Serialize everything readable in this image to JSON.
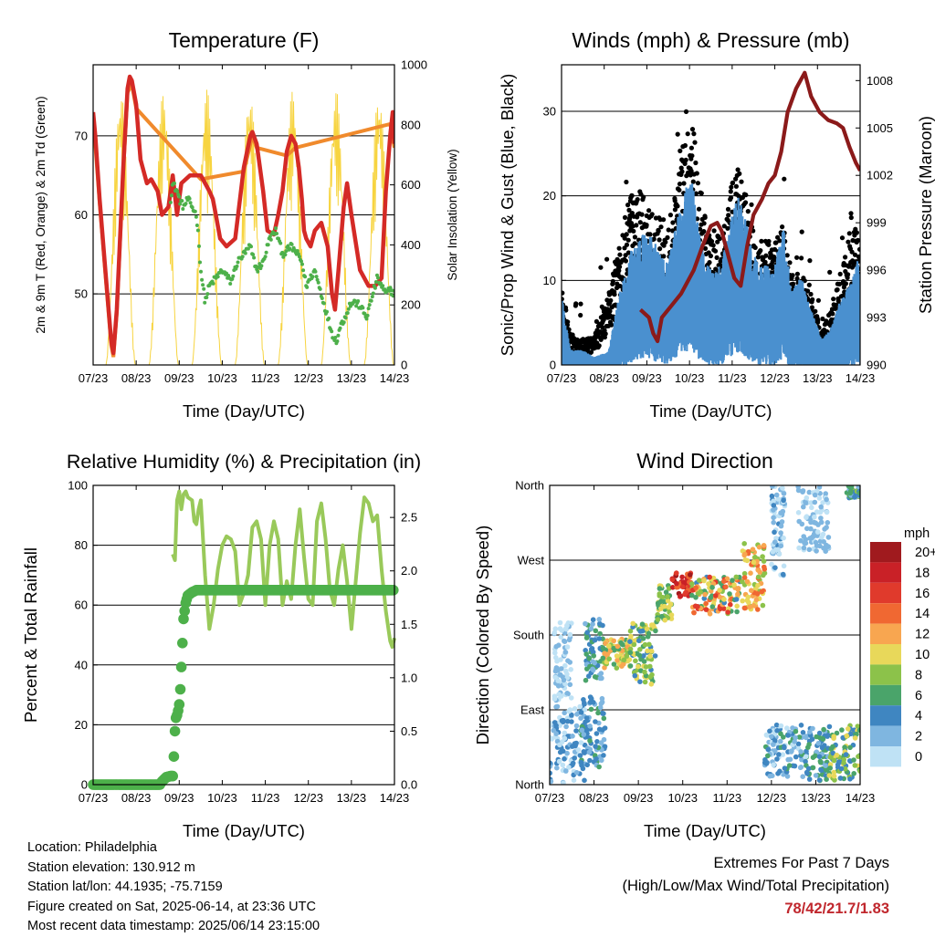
{
  "colors": {
    "temp": "#d42a26",
    "temp9": "#f08a2c",
    "dew": "#4db04a",
    "solar": "#f7d440",
    "gust": "#000000",
    "wind": "#4a90cf",
    "pressure": "#8b1a1a",
    "rh": "#99c95a",
    "precip": "#4db04a",
    "extremes": "#c0272d"
  },
  "chart_data": [
    {
      "id": "temperature",
      "type": "line",
      "title": "Temperature (F)",
      "xlabel": "Time (Day/UTC)",
      "ylabel": "2m & 9m T (Red, Orange) & 2m Td (Green)",
      "y2label": "Solar Insolation (Yellow)",
      "x_ticks": [
        "07/23",
        "08/23",
        "09/23",
        "10/23",
        "11/23",
        "12/23",
        "13/23",
        "14/23"
      ],
      "xlim": [
        0,
        7
      ],
      "ylim": [
        41,
        79
      ],
      "y_ticks": [
        50,
        60,
        70
      ],
      "y2lim": [
        0,
        1000
      ],
      "y2_ticks": [
        0,
        200,
        400,
        600,
        800,
        1000
      ],
      "grid": "horizontal",
      "series": [
        {
          "key": "t2m",
          "x": [
            0,
            0.05,
            0.15,
            0.3,
            0.42,
            0.47,
            0.55,
            0.7,
            0.8,
            0.85,
            0.9,
            1.0,
            1.1,
            1.25,
            1.35,
            1.5,
            1.6,
            1.75,
            1.85,
            1.95,
            2.05,
            2.25,
            2.5,
            2.7,
            2.78,
            2.85,
            2.95,
            3.1,
            3.3,
            3.5,
            3.65,
            3.7,
            3.8,
            3.85,
            3.95,
            4.05,
            4.2,
            4.3,
            4.4,
            4.5,
            4.6,
            4.7,
            4.78,
            4.85,
            4.9,
            4.95,
            5.05,
            5.15,
            5.3,
            5.45,
            5.55,
            5.62,
            5.7,
            5.82,
            5.9,
            6.0,
            6.2,
            6.4,
            6.55,
            6.7,
            6.8,
            6.9,
            6.96,
            7.0
          ],
          "y": [
            73,
            70,
            62,
            52,
            44,
            42.5,
            48,
            66,
            76,
            77.5,
            77,
            74,
            67,
            64,
            64.5,
            63,
            60,
            61,
            65,
            60,
            64,
            65,
            65,
            63,
            62,
            60,
            57,
            56,
            57,
            66,
            70,
            70.5,
            69,
            67,
            63,
            58,
            57.5,
            60,
            63,
            68,
            70,
            69,
            66,
            62,
            58,
            57,
            56,
            58,
            59,
            56,
            50,
            48,
            53,
            61,
            64,
            60,
            53,
            51,
            51,
            52,
            63,
            70,
            73,
            69
          ]
        },
        {
          "key": "t9m",
          "x": [
            0,
            0.15,
            0.3,
            0.42,
            0.47,
            0.55,
            0.7,
            0.8,
            0.9,
            1.0,
            2.5,
            3.5,
            3.7,
            3.8,
            4.5,
            4.7,
            6.9,
            7.0
          ],
          "y": [
            72.5,
            61.5,
            51.5,
            43.5,
            42,
            47.5,
            65.5,
            75.5,
            76.5,
            73.5,
            64.5,
            65.5,
            70,
            68.5,
            67.5,
            68.5,
            71.5,
            68.5
          ]
        },
        {
          "key": "td2m",
          "x": [
            1.8,
            1.85,
            1.95,
            2.0,
            2.1,
            2.2,
            2.3,
            2.4,
            2.45,
            2.5,
            2.6,
            2.7,
            2.85,
            3.0,
            3.2,
            3.35,
            3.5,
            3.65,
            3.8,
            3.95,
            4.1,
            4.25,
            4.4,
            4.6,
            4.75,
            4.85,
            4.95,
            5.05,
            5.15,
            5.25,
            5.35,
            5.45,
            5.55,
            5.65,
            5.75,
            5.85,
            5.95,
            6.05,
            6.2,
            6.35,
            6.5,
            6.6,
            6.7,
            6.8,
            6.9,
            7.0
          ],
          "y": [
            62,
            64,
            63,
            62,
            61,
            62,
            61,
            60,
            57,
            53,
            49,
            51,
            52,
            53,
            51.5,
            54,
            55,
            56,
            53,
            54,
            57,
            58,
            55,
            56,
            55,
            54,
            51,
            52,
            53,
            51,
            49,
            47,
            45,
            44,
            46,
            47,
            48.5,
            49,
            48.5,
            47,
            50,
            52,
            51,
            50,
            50.5,
            50
          ]
        },
        {
          "key": "solar",
          "days": 7,
          "peak": 920,
          "start": 0.5,
          "end": 0.93
        }
      ]
    },
    {
      "id": "winds",
      "type": "scatter",
      "title": "Winds (mph) & Pressure (mb)",
      "xlabel": "Time (Day/UTC)",
      "ylabel": "Sonic/Prop Wind & Gust (Blue, Black)",
      "y2label": "Station Pressure (Maroon)",
      "x_ticks": [
        "07/23",
        "08/23",
        "09/23",
        "10/23",
        "11/23",
        "12/23",
        "13/23",
        "14/23"
      ],
      "xlim": [
        0,
        7
      ],
      "ylim": [
        0,
        35.5
      ],
      "y_ticks": [
        0,
        10,
        20,
        30
      ],
      "y2lim": [
        990,
        1009
      ],
      "y2_ticks": [
        990,
        993,
        996,
        999,
        1002,
        1005,
        1008
      ],
      "grid": "horizontal",
      "wind_envelope": {
        "x": [
          0,
          0.2,
          0.5,
          0.75,
          1.1,
          1.35,
          1.5,
          1.6,
          1.85,
          2.1,
          2.3,
          2.5,
          2.65,
          2.8,
          3.05,
          3.2,
          3.35,
          3.55,
          3.75,
          3.95,
          4.15,
          4.3,
          4.45,
          4.6,
          4.8,
          4.95,
          5.2,
          5.4,
          5.6,
          5.85,
          6.1,
          6.3,
          6.5,
          6.75,
          6.95,
          7.0
        ],
        "y": [
          7,
          1.5,
          1.5,
          0.8,
          1.3,
          7,
          9,
          11,
          13,
          13,
          11,
          10,
          13.5,
          16,
          19,
          14,
          10.5,
          9,
          10,
          14,
          17,
          15,
          11.5,
          10,
          10,
          9,
          14,
          7,
          9,
          5.5,
          2.5,
          3.5,
          6,
          8,
          10.5,
          9
        ]
      },
      "gust_envelope": {
        "x": [
          0,
          0.2,
          0.5,
          0.75,
          1.1,
          1.35,
          1.5,
          1.6,
          1.85,
          2.1,
          2.3,
          2.5,
          2.65,
          2.8,
          3.05,
          3.2,
          3.35,
          3.55,
          3.75,
          3.95,
          4.15,
          4.3,
          4.45,
          4.6,
          4.8,
          4.95,
          5.2,
          5.4,
          5.6,
          5.85,
          6.1,
          6.3,
          6.5,
          6.75,
          6.95,
          7.0
        ],
        "y": [
          10,
          3.5,
          3,
          3,
          8,
          14,
          17,
          19,
          20,
          18,
          16,
          17,
          19,
          25,
          29,
          22,
          17,
          14,
          15,
          20,
          23,
          20,
          16,
          14,
          15,
          13,
          17,
          10,
          11,
          8,
          4,
          6,
          10,
          14,
          16,
          13
        ]
      },
      "pressure": {
        "x": [
          1.85,
          2.05,
          2.15,
          2.25,
          2.35,
          2.5,
          2.8,
          3.1,
          3.3,
          3.5,
          3.65,
          3.75,
          3.9,
          4.05,
          4.2,
          4.35,
          4.5,
          4.7,
          4.85,
          5.0,
          5.15,
          5.3,
          5.5,
          5.7,
          5.85,
          6.05,
          6.25,
          6.45,
          6.6,
          6.75,
          6.9,
          7.0
        ],
        "y": [
          993.5,
          993,
          992,
          991.5,
          993,
          993.5,
          994.5,
          996,
          997.5,
          998.8,
          999,
          998.5,
          997,
          995.5,
          995,
          997.5,
          999.5,
          1000.5,
          1001.5,
          1002,
          1003.5,
          1006,
          1007.5,
          1008.5,
          1007,
          1006,
          1005.5,
          1005.3,
          1005,
          1003.8,
          1002.8,
          1002.3
        ]
      }
    },
    {
      "id": "humidity",
      "type": "line",
      "title": "Relative Humidity (%) & Precipitation (in)",
      "xlabel": "Time (Day/UTC)",
      "ylabel": "Percent & Total Rainfall",
      "x_ticks": [
        "07/23",
        "08/23",
        "09/23",
        "10/23",
        "11/23",
        "12/23",
        "13/23",
        "14/23"
      ],
      "xlim": [
        0,
        7
      ],
      "ylim": [
        0,
        100
      ],
      "y_ticks": [
        0,
        20,
        40,
        60,
        80,
        100
      ],
      "y2lim": [
        0,
        2.8
      ],
      "y2_ticks": [
        "0.0",
        "0.5",
        "1.0",
        "1.5",
        "2.0",
        "2.5"
      ],
      "grid": "horizontal",
      "series": [
        {
          "key": "rh",
          "x": [
            1.85,
            1.9,
            1.95,
            2.0,
            2.05,
            2.1,
            2.15,
            2.2,
            2.3,
            2.35,
            2.4,
            2.45,
            2.5,
            2.6,
            2.7,
            2.8,
            2.9,
            3.0,
            3.1,
            3.2,
            3.3,
            3.4,
            3.5,
            3.6,
            3.7,
            3.8,
            3.9,
            4.0,
            4.1,
            4.2,
            4.3,
            4.4,
            4.5,
            4.6,
            4.7,
            4.8,
            4.9,
            5.0,
            5.1,
            5.2,
            5.3,
            5.4,
            5.5,
            5.6,
            5.7,
            5.8,
            5.9,
            6.0,
            6.1,
            6.2,
            6.3,
            6.4,
            6.5,
            6.6,
            6.7,
            6.8,
            6.9,
            6.95,
            7.0
          ],
          "y": [
            77,
            75,
            95,
            98,
            92,
            97,
            98,
            96,
            95,
            88,
            87,
            92,
            95,
            70,
            52,
            60,
            72,
            80,
            83,
            82,
            78,
            60,
            64,
            70,
            86,
            88,
            82,
            60,
            80,
            88,
            82,
            60,
            68,
            62,
            80,
            92,
            76,
            62,
            60,
            88,
            94,
            82,
            65,
            60,
            72,
            80,
            68,
            52,
            68,
            84,
            96,
            94,
            88,
            90,
            72,
            58,
            48,
            46,
            49
          ]
        },
        {
          "key": "precip",
          "x": [
            0,
            1.55,
            1.6,
            1.7,
            1.8,
            1.85,
            1.88,
            1.9,
            1.92,
            1.95,
            1.98,
            2.0,
            2.02,
            2.05,
            2.1,
            2.15,
            2.2,
            2.3,
            2.4,
            7.0
          ],
          "y": [
            0,
            0,
            0.03,
            0.07,
            0.08,
            0.08,
            0.3,
            0.5,
            0.62,
            0.65,
            0.7,
            0.75,
            0.85,
            1.1,
            1.55,
            1.7,
            1.77,
            1.8,
            1.82,
            1.82
          ]
        }
      ]
    },
    {
      "id": "direction",
      "type": "scatter",
      "title": "Wind Direction",
      "xlabel": "Time (Day/UTC)",
      "ylabel": "Direction (Colored By Speed)",
      "x_ticks": [
        "07/23",
        "08/23",
        "09/23",
        "10/23",
        "11/23",
        "12/23",
        "13/23",
        "14/23"
      ],
      "xlim": [
        0,
        7
      ],
      "ylim": [
        0,
        360
      ],
      "y_ticks": [
        "North",
        "East",
        "South",
        "West",
        "North"
      ],
      "grid": "horizontal",
      "legend": {
        "title": "mph",
        "position": "right",
        "labels": [
          "20+",
          "18",
          "16",
          "14",
          "12",
          "10",
          "8",
          "6",
          "4",
          "2",
          "0"
        ],
        "colors": [
          "#a01a1e",
          "#c92127",
          "#e03a2c",
          "#f06832",
          "#f8a650",
          "#e8d85a",
          "#8cc24a",
          "#4aa46a",
          "#3f86c1",
          "#7fb6e0",
          "#bfe2f5"
        ]
      },
      "clusters": [
        {
          "x": [
            0,
            0.8
          ],
          "dir": [
            0,
            95
          ],
          "speed": [
            0,
            6
          ]
        },
        {
          "x": [
            0.1,
            0.5
          ],
          "dir": [
            100,
            200
          ],
          "speed": [
            0,
            4
          ]
        },
        {
          "x": [
            0.7,
            1.25
          ],
          "dir": [
            20,
            110
          ],
          "speed": [
            2,
            7
          ]
        },
        {
          "x": [
            0.8,
            1.2
          ],
          "dir": [
            125,
            200
          ],
          "speed": [
            3,
            8
          ]
        },
        {
          "x": [
            1.2,
            1.8
          ],
          "dir": [
            140,
            175
          ],
          "speed": [
            6,
            14
          ]
        },
        {
          "x": [
            1.8,
            2.4
          ],
          "dir": [
            120,
            195
          ],
          "speed": [
            5,
            12
          ]
        },
        {
          "x": [
            2.4,
            2.75
          ],
          "dir": [
            195,
            240
          ],
          "speed": [
            6,
            11
          ]
        },
        {
          "x": [
            2.75,
            3.2
          ],
          "dir": [
            225,
            255
          ],
          "speed": [
            14,
            22
          ]
        },
        {
          "x": [
            3.2,
            4.3
          ],
          "dir": [
            205,
            250
          ],
          "speed": [
            5,
            18
          ]
        },
        {
          "x": [
            4.3,
            4.85
          ],
          "dir": [
            210,
            290
          ],
          "speed": [
            8,
            16
          ]
        },
        {
          "x": [
            4.85,
            5.8
          ],
          "dir": [
            8,
            72
          ],
          "speed": [
            1,
            7
          ]
        },
        {
          "x": [
            5.8,
            6.3
          ],
          "dir": [
            5,
            68
          ],
          "speed": [
            3,
            8
          ]
        },
        {
          "x": [
            6.3,
            7.0
          ],
          "dir": [
            5,
            72
          ],
          "speed": [
            4,
            12
          ]
        },
        {
          "x": [
            5.0,
            5.3
          ],
          "dir": [
            250,
            360
          ],
          "speed": [
            0,
            5
          ]
        },
        {
          "x": [
            5.6,
            6.3
          ],
          "dir": [
            280,
            360
          ],
          "speed": [
            1,
            4
          ]
        },
        {
          "x": [
            6.7,
            7.0
          ],
          "dir": [
            345,
            360
          ],
          "speed": [
            2,
            9
          ]
        }
      ]
    }
  ],
  "meta": {
    "location": "Location: Philadelphia",
    "elevation": "Station elevation: 130.912 m",
    "latlon": "Station lat/lon: 44.1935; -75.7159",
    "created": "Figure created on Sat, 2025-06-14, at 23:36 UTC",
    "recent": "Most recent data timestamp: 2025/06/14 23:15:00"
  },
  "extremes": {
    "title": "Extremes For Past 7 Days",
    "subtitle": "(High/Low/Max Wind/Total Precipitation)",
    "values": "78/42/21.7/1.83"
  }
}
